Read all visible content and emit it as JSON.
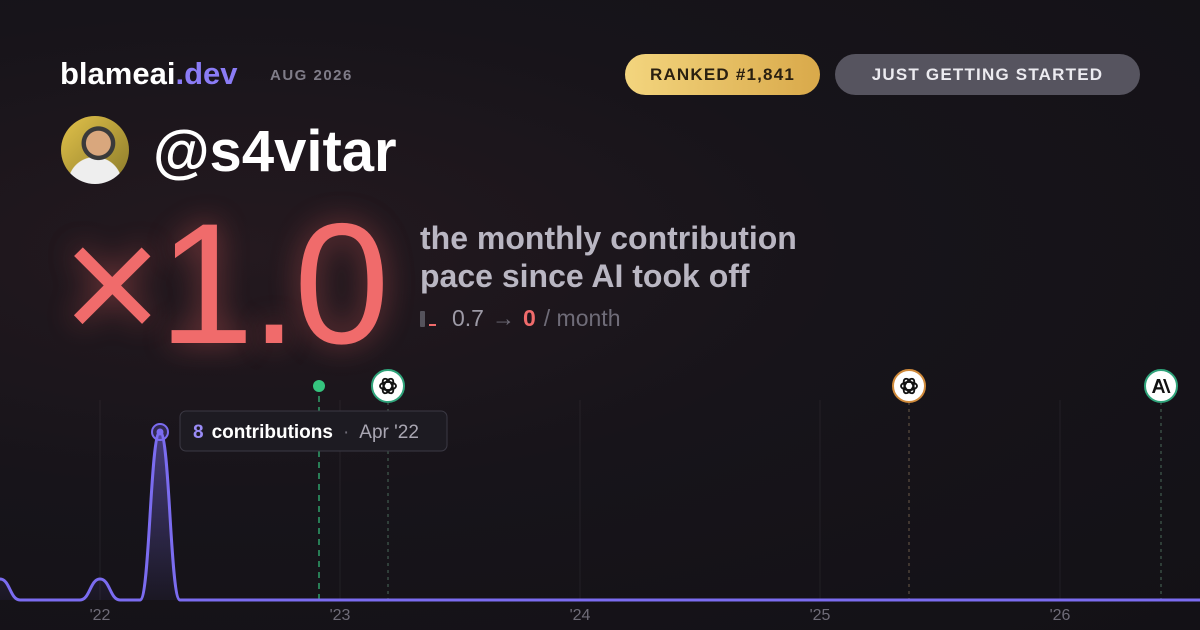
{
  "header": {
    "brand": "blameai",
    "brand_suffix": ".dev",
    "period": "AUG 2026",
    "rank_badge": "RANKED #1,841",
    "level_badge": "JUST GETTING STARTED",
    "handle": "@s4vitar"
  },
  "headline": {
    "multiplier": "×1.0",
    "description_line_1": "the monthly contribution",
    "description_line_2": "pace since AI took off",
    "before": 0.7,
    "arrow": "→",
    "after": 0,
    "unit": "/ month"
  },
  "chart_data": {
    "type": "line",
    "categories": [
      null,
      null,
      null,
      null,
      null,
      "'22",
      null,
      null,
      null,
      null,
      null,
      null,
      null,
      null,
      null,
      null,
      null,
      "'23",
      null,
      null,
      null,
      null,
      null,
      null,
      null,
      null,
      null,
      null,
      null,
      "'24",
      null,
      null,
      null,
      null,
      null,
      null,
      null,
      null,
      null,
      null,
      null,
      "'25",
      null,
      null,
      null,
      null,
      null,
      null,
      null,
      null,
      null,
      null,
      null,
      "'26",
      null,
      null,
      null,
      null,
      null,
      null,
      null
    ],
    "values": [
      1,
      0,
      0,
      0,
      0,
      1,
      0,
      0,
      8,
      0,
      0,
      0,
      0,
      0,
      0,
      0,
      0,
      0,
      0,
      0,
      0,
      0,
      0,
      0,
      0,
      0,
      0,
      0,
      0,
      0,
      0,
      0,
      0,
      0,
      0,
      0,
      0,
      0,
      0,
      0,
      0,
      0,
      0,
      0,
      0,
      0,
      0,
      0,
      0,
      0,
      0,
      0,
      0,
      0,
      0,
      0,
      0,
      0,
      0,
      0,
      0
    ],
    "color": "#7b6cf0",
    "ylim": [
      0,
      8
    ],
    "tooltip": {
      "label": "contributions",
      "separator": "·",
      "date": "Apr '22"
    }
  }
}
